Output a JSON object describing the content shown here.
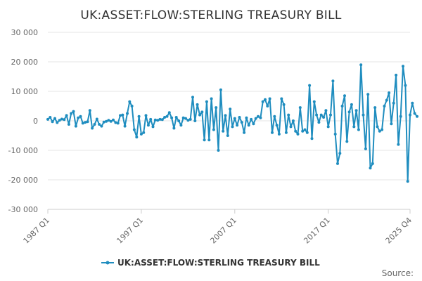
{
  "chart_data": {
    "type": "line",
    "title": "UK:ASSET:FLOW:STERLING TREASURY BILL",
    "series_name": "UK:ASSET:FLOW:STERLING TREASURY BILL",
    "source_label": "Source:",
    "color": "#1f8dbf",
    "ylim": [
      -30000,
      30000
    ],
    "y_ticks": [
      30000,
      20000,
      10000,
      0,
      -10000,
      -20000,
      -30000
    ],
    "y_tick_labels": [
      "30 000",
      "20 000",
      "10 000",
      "0",
      "-10 000",
      "-20 000",
      "-30 000"
    ],
    "x_tick_labels": [
      "1987 Q1",
      "1997 Q1",
      "2007 Q1",
      "2017 Q1",
      "2025 Q4"
    ],
    "x_tick_positions": [
      0,
      40,
      80,
      120,
      155
    ],
    "x_range": [
      0,
      155
    ],
    "grid": true,
    "legend": "bottom",
    "values": [
      500,
      1200,
      -300,
      800,
      -600,
      200,
      600,
      400,
      1800,
      -1200,
      2500,
      3200,
      -1800,
      1000,
      1500,
      -800,
      -500,
      -300,
      3500,
      -2500,
      -1200,
      600,
      -1200,
      -1800,
      -400,
      -200,
      200,
      -200,
      300,
      -600,
      -800,
      1800,
      2000,
      -1800,
      2500,
      6500,
      5000,
      -3000,
      -5500,
      1500,
      -4500,
      -4000,
      1800,
      -1500,
      500,
      -2000,
      300,
      200,
      500,
      400,
      1200,
      1500,
      2800,
      1000,
      -2500,
      1200,
      0,
      -1500,
      1000,
      800,
      200,
      500,
      8000,
      0,
      5500,
      2000,
      3000,
      -6500,
      6500,
      -6500,
      7500,
      -3000,
      4500,
      -10000,
      10500,
      -3500,
      1800,
      -5000,
      4000,
      -2000,
      800,
      -1500,
      1200,
      -500,
      -4000,
      1000,
      -1500,
      500,
      -1000,
      800,
      1500,
      1000,
      6500,
      7200,
      5000,
      7500,
      -4000,
      1500,
      -1500,
      -4500,
      7500,
      5500,
      -4000,
      2000,
      -2000,
      0,
      -3500,
      -4500,
      4500,
      -3500,
      -3000,
      -4000,
      12000,
      -6000,
      6500,
      2000,
      -500,
      2000,
      1200,
      3500,
      -2000,
      2000,
      13500,
      -4500,
      -14500,
      -11000,
      5000,
      8500,
      -7000,
      3000,
      5500,
      -2000,
      3500,
      -3000,
      19000,
      2000,
      -9500,
      9000,
      -16000,
      -14500,
      4500,
      -2000,
      -3500,
      -3000,
      5000,
      7000,
      9500,
      -1000,
      6000,
      15500,
      -8000,
      1500,
      18500,
      12000,
      -20500,
      2000,
      6000,
      2500,
      1500
    ]
  }
}
